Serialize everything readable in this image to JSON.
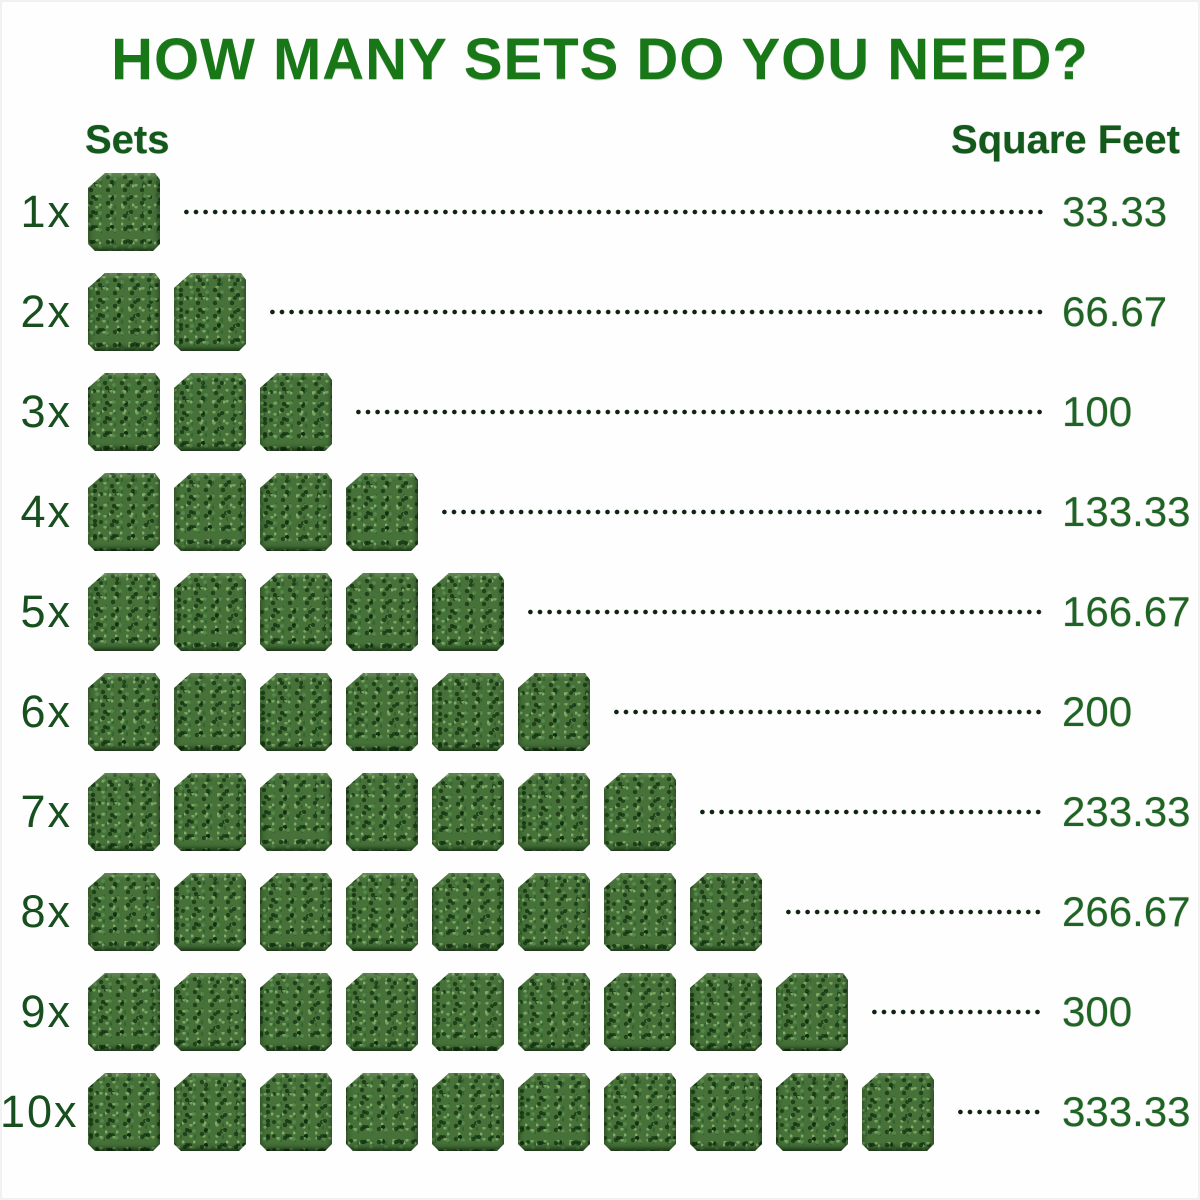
{
  "title": "HOW MANY SETS DO YOU NEED?",
  "columns": {
    "left": "Sets",
    "right": "Square Feet"
  },
  "rows": [
    {
      "label": "1x",
      "sets": 1,
      "square_feet": "33.33"
    },
    {
      "label": "2x",
      "sets": 2,
      "square_feet": "66.67"
    },
    {
      "label": "3x",
      "sets": 3,
      "square_feet": "100"
    },
    {
      "label": "4x",
      "sets": 4,
      "square_feet": "133.33"
    },
    {
      "label": "5x",
      "sets": 5,
      "square_feet": "166.67"
    },
    {
      "label": "6x",
      "sets": 6,
      "square_feet": "200"
    },
    {
      "label": "7x",
      "sets": 7,
      "square_feet": "233.33"
    },
    {
      "label": "8x",
      "sets": 8,
      "square_feet": "266.67"
    },
    {
      "label": "9x",
      "sets": 9,
      "square_feet": "300"
    },
    {
      "label": "10x",
      "sets": 10,
      "square_feet": "333.33"
    }
  ],
  "icons": {
    "panel": "grass-panel-icon"
  },
  "colors": {
    "title_green": "#187818",
    "header_green": "#14591c",
    "label_green": "#174f1e",
    "value_green": "#1e6422",
    "dot_color": "#0f2410",
    "panel_green": "#467139",
    "background": "#fefefe"
  },
  "chart_data": {
    "type": "bar",
    "title": "HOW MANY SETS DO YOU NEED?",
    "categories": [
      "1x",
      "2x",
      "3x",
      "4x",
      "5x",
      "6x",
      "7x",
      "8x",
      "9x",
      "10x"
    ],
    "series": [
      {
        "name": "Square Feet",
        "values": [
          33.33,
          66.67,
          100,
          133.33,
          166.67,
          200,
          233.33,
          266.67,
          300,
          333.33
        ]
      }
    ],
    "xlabel": "Sets",
    "ylabel": "Square Feet",
    "legend": false,
    "grid": false,
    "annotation": "pictograph: each grass-panel icon represents 1 set = 33.33 square feet"
  }
}
